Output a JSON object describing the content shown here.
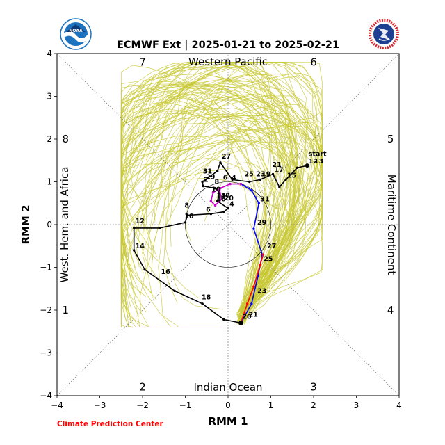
{
  "logos": {
    "left": {
      "name": "NOAA",
      "primary_color": "#1e73be",
      "secondary_color": "#0d3b7a"
    },
    "right": {
      "name": "NATIONAL WEATHER SERVICE",
      "ring_color": "#d7262e",
      "primary_color": "#1f3f93"
    }
  },
  "credit": "Climate Prediction Center",
  "colors": {
    "ensemble": "#c8c832",
    "observed": "#000000",
    "forecast_week1": "#0000ff",
    "forecast_week2": "#ff0000",
    "forecast_mean_early": "#cc00cc",
    "credit": "#ff0000"
  },
  "chart_data": {
    "type": "line",
    "title": "ECMWF Ext | 2025-01-21 to 2025-02-21",
    "xlabel": "RMM 1",
    "ylabel": "RMM 2",
    "xlim": [
      -4,
      4
    ],
    "ylim": [
      -4,
      4
    ],
    "xticks": [
      "−4",
      "−3",
      "−2",
      "−1",
      "0",
      "1",
      "2",
      "3",
      "4"
    ],
    "yticks": [
      "−4",
      "−3",
      "−2",
      "−1",
      "0",
      "1",
      "2",
      "3",
      "4"
    ],
    "grid": false,
    "unit_circle_radius": 1,
    "phase_numbers": [
      {
        "label": "1",
        "x": -3.8,
        "y": -2.0
      },
      {
        "label": "2",
        "x": -2.0,
        "y": -3.8
      },
      {
        "label": "3",
        "x": 2.0,
        "y": -3.8
      },
      {
        "label": "4",
        "x": 3.8,
        "y": -2.0
      },
      {
        "label": "5",
        "x": 3.8,
        "y": 2.0
      },
      {
        "label": "6",
        "x": 2.0,
        "y": 3.8
      },
      {
        "label": "7",
        "x": -2.0,
        "y": 3.8
      },
      {
        "label": "8",
        "x": -3.8,
        "y": 2.0
      }
    ],
    "region_labels": {
      "top": "Western Pacific",
      "bottom": "Indian Ocean",
      "left": "West. Hem. and Africa",
      "right": "Maritime Continent"
    },
    "series": [
      {
        "role": "observed",
        "values": [
          [
            1.85,
            1.38
          ],
          [
            1.62,
            1.33
          ],
          [
            1.35,
            1.05
          ],
          [
            1.2,
            0.88
          ],
          [
            1.05,
            1.18
          ],
          [
            0.75,
            1.05
          ],
          [
            0.5,
            1.0
          ],
          [
            0.1,
            1.05
          ],
          [
            -0.18,
            1.45
          ],
          [
            -0.25,
            1.25
          ],
          [
            -0.6,
            1.0
          ],
          [
            -0.58,
            0.9
          ],
          [
            -0.3,
            0.85
          ],
          [
            -0.2,
            0.75
          ],
          [
            -0.25,
            0.55
          ],
          [
            0.0,
            0.38
          ],
          [
            -0.1,
            0.3
          ],
          [
            -0.4,
            0.25
          ],
          [
            -0.95,
            0.22
          ],
          [
            -1.0,
            0.05
          ],
          [
            -1.6,
            -0.08
          ],
          [
            -2.2,
            -0.08
          ],
          [
            -2.2,
            -0.6
          ],
          [
            -1.95,
            -1.05
          ],
          [
            -1.25,
            -1.55
          ],
          [
            -0.6,
            -1.85
          ],
          [
            -0.1,
            -2.22
          ],
          [
            0.3,
            -2.3
          ]
        ]
      },
      {
        "role": "forecast_week1",
        "values": [
          [
            0.3,
            -2.3
          ],
          [
            0.55,
            -1.85
          ],
          [
            0.7,
            -1.2
          ],
          [
            0.8,
            -0.7
          ],
          [
            0.6,
            -0.1
          ],
          [
            0.72,
            0.5
          ],
          [
            0.55,
            0.8
          ],
          [
            0.3,
            0.95
          ]
        ]
      },
      {
        "role": "forecast_mean_early",
        "values": [
          [
            0.3,
            0.95
          ],
          [
            0.05,
            0.95
          ],
          [
            -0.18,
            0.85
          ],
          [
            -0.35,
            0.75
          ],
          [
            -0.4,
            0.55
          ],
          [
            -0.3,
            0.45
          ],
          [
            -0.15,
            0.6
          ],
          [
            -0.2,
            0.8
          ]
        ]
      },
      {
        "role": "forecast_week2",
        "values": [
          [
            0.3,
            -2.3
          ],
          [
            0.45,
            -1.85
          ],
          [
            0.6,
            -1.45
          ],
          [
            0.75,
            -0.95
          ],
          [
            0.82,
            -0.7
          ]
        ]
      }
    ],
    "point_labels": [
      {
        "text": "start",
        "x": 1.85,
        "y": 1.55
      },
      {
        "text": "12",
        "x": 1.85,
        "y": 1.38
      },
      {
        "text": "13",
        "x": 1.98,
        "y": 1.38
      },
      {
        "text": "15",
        "x": 1.35,
        "y": 1.05
      },
      {
        "text": "17",
        "x": 1.05,
        "y": 1.18
      },
      {
        "text": "21",
        "x": 1.0,
        "y": 1.3
      },
      {
        "text": "19",
        "x": 0.75,
        "y": 1.08
      },
      {
        "text": "23",
        "x": 0.62,
        "y": 1.08
      },
      {
        "text": "25",
        "x": 0.35,
        "y": 1.08
      },
      {
        "text": "27",
        "x": -0.18,
        "y": 1.5
      },
      {
        "text": "31",
        "x": -0.62,
        "y": 1.15
      },
      {
        "text": "29",
        "x": -0.55,
        "y": 1.02
      },
      {
        "text": "2",
        "x": -0.6,
        "y": 0.95
      },
      {
        "text": "6",
        "x": -0.15,
        "y": 1.0
      },
      {
        "text": "4",
        "x": 0.05,
        "y": 1.0
      },
      {
        "text": "8",
        "x": -0.35,
        "y": 0.9
      },
      {
        "text": "10",
        "x": -0.42,
        "y": 0.72
      },
      {
        "text": "14",
        "x": -0.3,
        "y": 0.58
      },
      {
        "text": "16",
        "x": -0.3,
        "y": 0.5
      },
      {
        "text": "18",
        "x": -0.2,
        "y": 0.58
      },
      {
        "text": "20",
        "x": -0.12,
        "y": 0.52
      },
      {
        "text": "4",
        "x": 0.0,
        "y": 0.38
      },
      {
        "text": "6",
        "x": -0.55,
        "y": 0.25
      },
      {
        "text": "8",
        "x": -1.05,
        "y": 0.35
      },
      {
        "text": "10",
        "x": -1.05,
        "y": 0.1
      },
      {
        "text": "12",
        "x": -2.2,
        "y": -0.02
      },
      {
        "text": "14",
        "x": -2.2,
        "y": -0.6
      },
      {
        "text": "16",
        "x": -1.6,
        "y": -1.2
      },
      {
        "text": "18",
        "x": -0.65,
        "y": -1.8
      },
      {
        "text": "20",
        "x": 0.3,
        "y": -2.25
      },
      {
        "text": "21",
        "x": 0.45,
        "y": -2.2
      },
      {
        "text": "23",
        "x": 0.65,
        "y": -1.65
      },
      {
        "text": "25",
        "x": 0.8,
        "y": -0.9
      },
      {
        "text": "27",
        "x": 0.88,
        "y": -0.6
      },
      {
        "text": "29",
        "x": 0.65,
        "y": -0.05
      },
      {
        "text": "31",
        "x": 0.72,
        "y": 0.5
      }
    ]
  }
}
